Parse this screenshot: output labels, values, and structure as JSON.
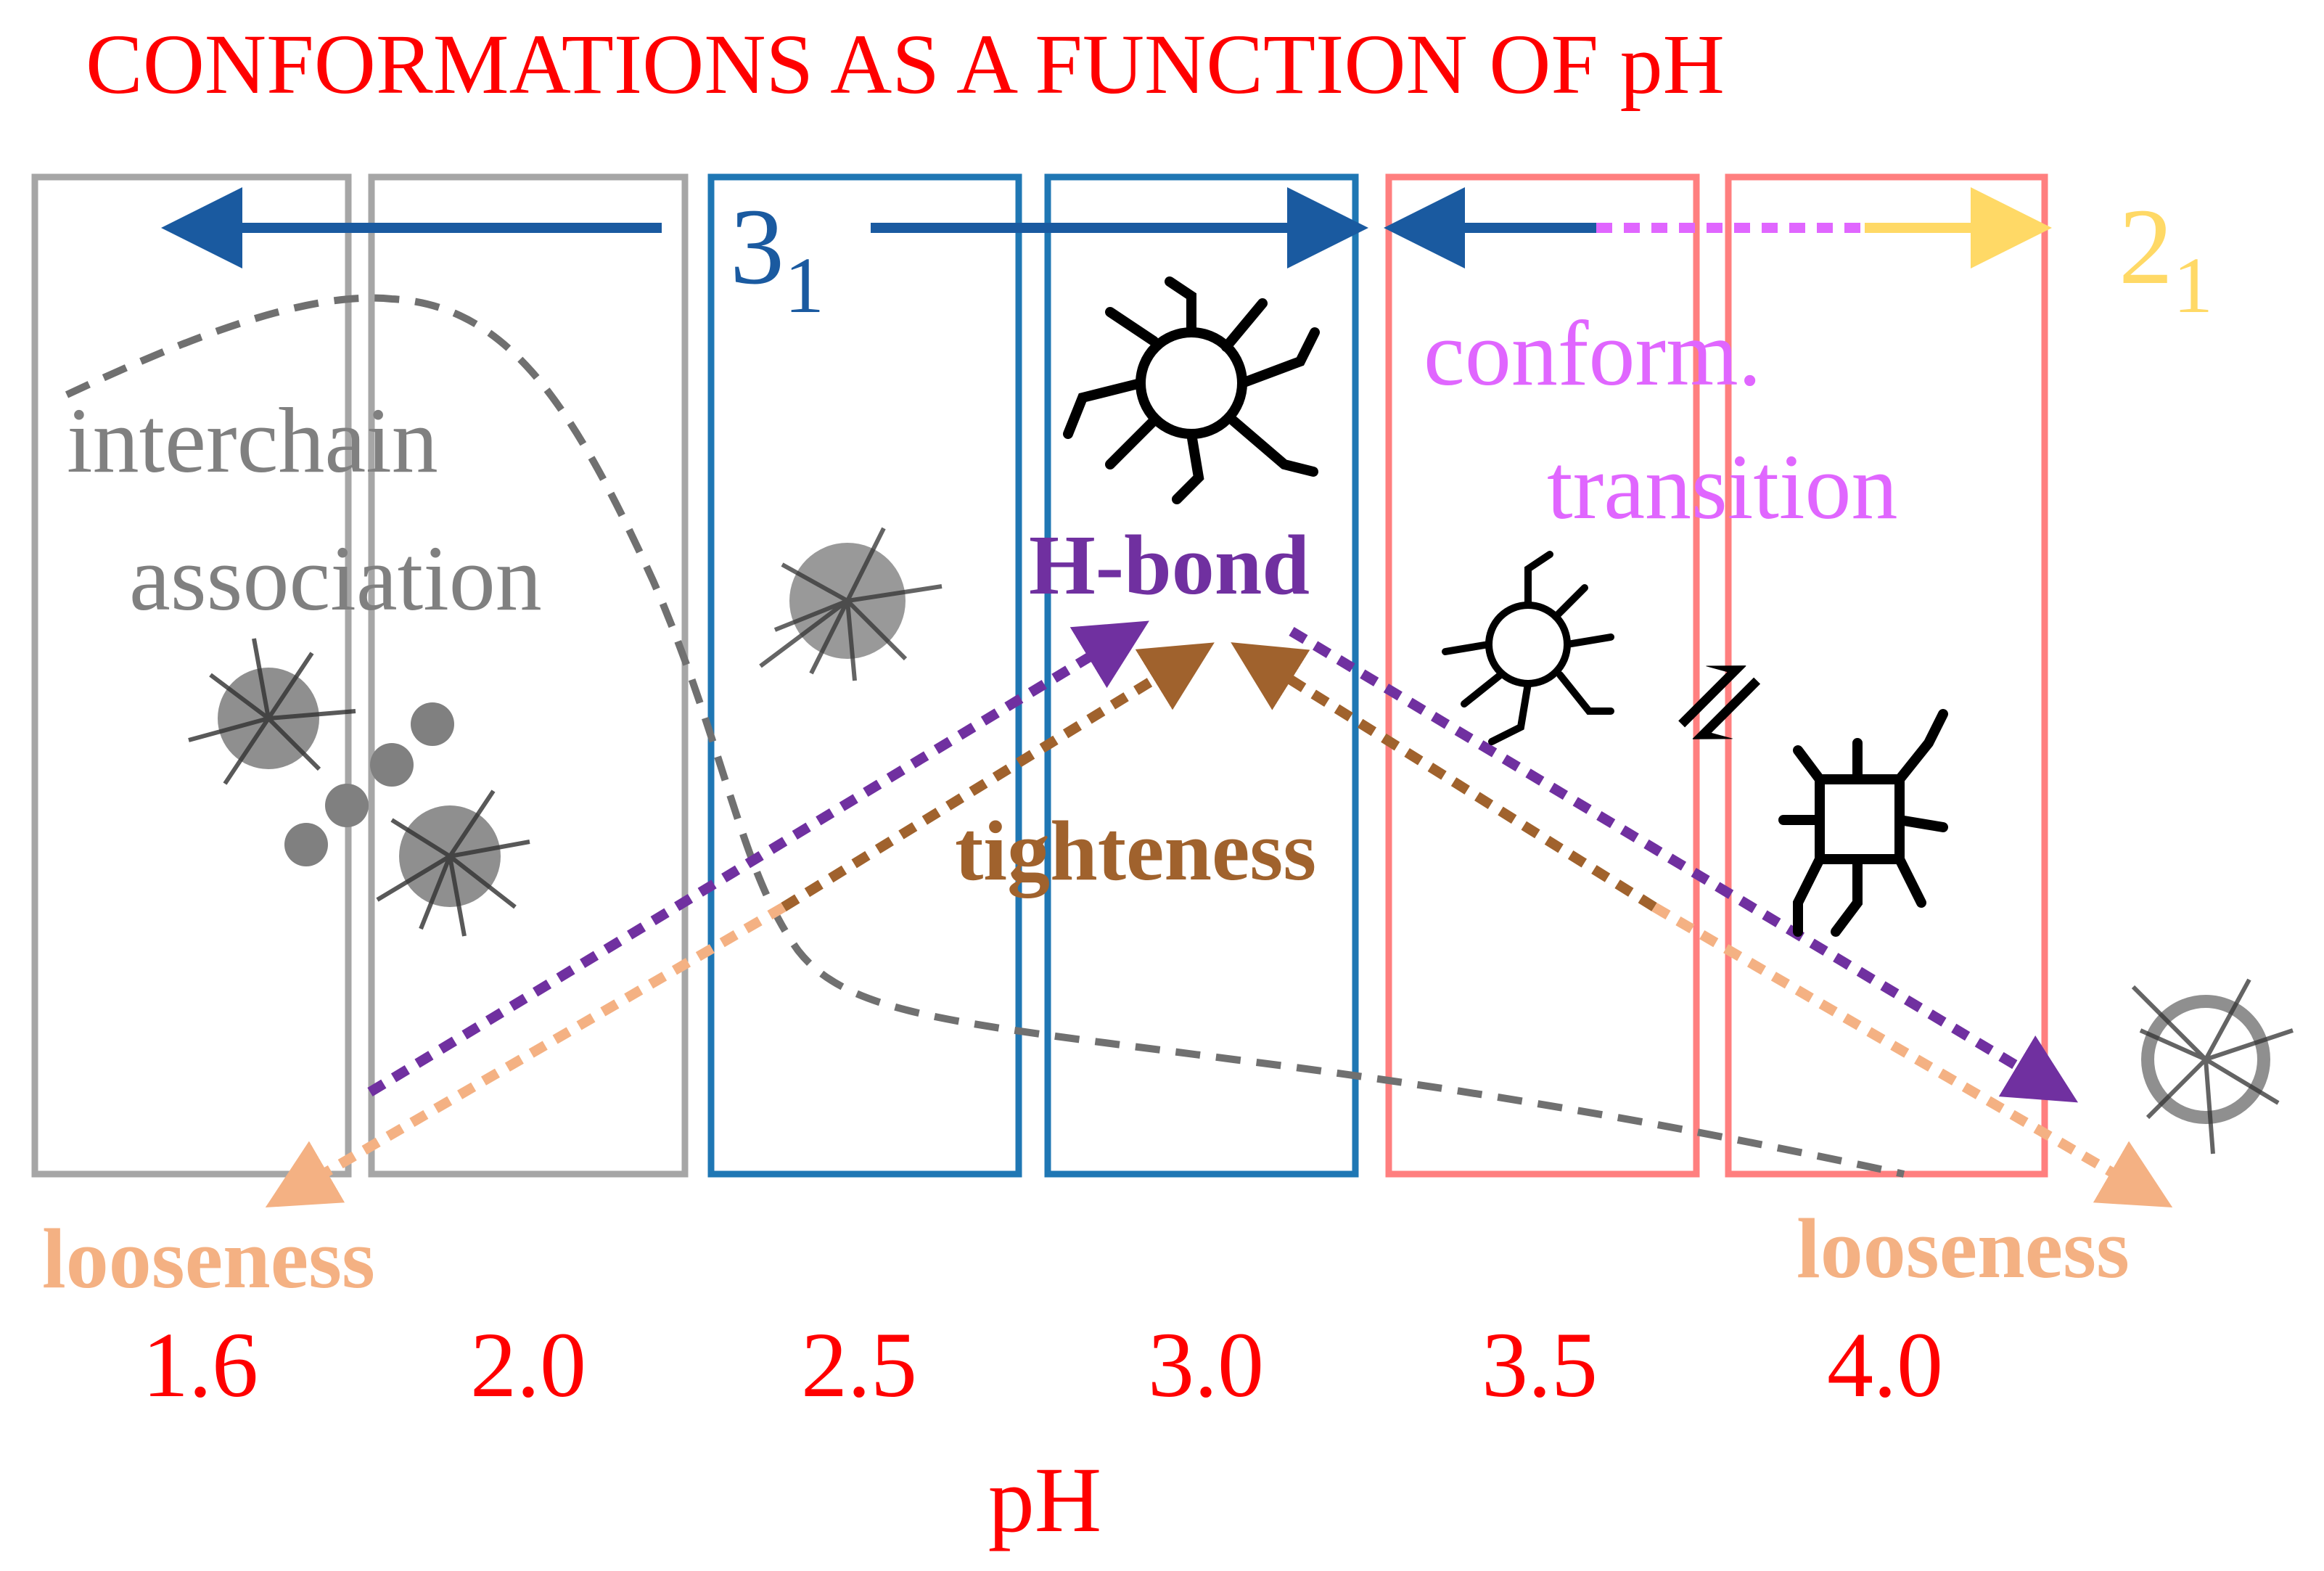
{
  "title": "CONFORMATIONS AS A FUNCTION OF pH",
  "x_axis": {
    "label": "pH",
    "ticks": [
      "1.6",
      "2.0",
      "2.5",
      "3.0",
      "3.5",
      "4.0"
    ]
  },
  "helix": {
    "three_one": {
      "base": "3",
      "sub": "1"
    },
    "two_one": {
      "base": "2",
      "sub": "1"
    }
  },
  "labels": {
    "interchain_line1": "interchain",
    "interchain_line2": "association",
    "conform_line1": "conform.",
    "conform_line2": "transition",
    "hbond": "H-bond",
    "tighteness": "tighteness",
    "looseness_left": "looseness",
    "looseness_right": "looseness",
    "equilibrium_symbol": "⇌"
  },
  "colors": {
    "title": "#ff0000",
    "gray_box": "#a6a6a6",
    "blue_box": "#1f77b4",
    "pink_box": "#ff7f7f",
    "dark_blue_arrow": "#1a5aa0",
    "magenta": "#e066ff",
    "yellow": "#ffd966",
    "purple": "#7030a0",
    "brown": "#a0622d",
    "peach": "#f4b183",
    "gray_curve": "#707070"
  },
  "icons": [
    "polymer-aggregate-icon",
    "polymer-chain-icon",
    "equilibrium-arrows-icon"
  ]
}
